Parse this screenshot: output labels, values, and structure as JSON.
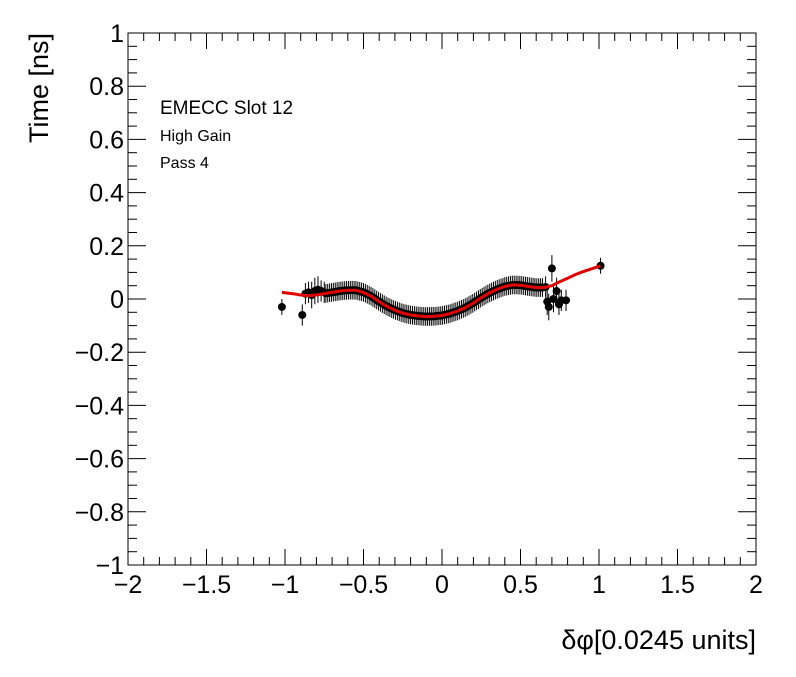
{
  "chart_data": {
    "type": "scatter",
    "xlabel": "δφ[0.0245 units]",
    "ylabel": "Time [ns]",
    "xlim": [
      -2,
      2
    ],
    "ylim": [
      -1,
      1
    ],
    "x_ticks": [
      -2,
      -1.5,
      -1,
      -0.5,
      0,
      0.5,
      1,
      1.5,
      2
    ],
    "x_tick_labels": [
      "−2",
      "−1.5",
      "−1",
      "−0.5",
      "0",
      "0.5",
      "1",
      "1.5",
      "2"
    ],
    "y_ticks": [
      -1,
      -0.8,
      -0.6,
      -0.4,
      -0.2,
      0,
      0.2,
      0.4,
      0.6,
      0.8,
      1
    ],
    "y_tick_labels": [
      "−1",
      "−0.8",
      "−0.6",
      "−0.4",
      "−0.2",
      "0",
      "0.2",
      "0.4",
      "0.6",
      "0.8",
      "1"
    ],
    "grid": false,
    "annotations": [
      "EMECC Slot 12",
      "High Gain",
      "Pass 4"
    ],
    "series": [
      {
        "kind": "points",
        "marker_color": "#000000",
        "points": [
          {
            "x": -1.02,
            "y": -0.03,
            "err": 0.03
          },
          {
            "x": -0.89,
            "y": -0.06,
            "err": 0.04
          },
          {
            "x": -0.87,
            "y": 0.02,
            "err": 0.04
          },
          {
            "x": -0.85,
            "y": 0.025,
            "err": 0.04
          },
          {
            "x": -0.83,
            "y": 0.015,
            "err": 0.05
          },
          {
            "x": -0.81,
            "y": 0.03,
            "err": 0.05
          },
          {
            "x": -0.79,
            "y": 0.035,
            "err": 0.05
          },
          {
            "x": -0.77,
            "y": 0.03,
            "err": 0.04
          },
          {
            "x": -0.75,
            "y": 0.025,
            "err": 0.04
          },
          {
            "x": 0.66,
            "y": 0.045,
            "err": 0.04
          },
          {
            "x": 0.67,
            "y": -0.01,
            "err": 0.05
          },
          {
            "x": 0.68,
            "y": -0.03,
            "err": 0.05
          },
          {
            "x": 0.7,
            "y": 0.115,
            "err": 0.05
          },
          {
            "x": 0.71,
            "y": 0.0,
            "err": 0.05
          },
          {
            "x": 0.73,
            "y": 0.03,
            "err": 0.05
          },
          {
            "x": 0.745,
            "y": -0.02,
            "err": 0.04
          },
          {
            "x": 0.76,
            "y": -0.005,
            "err": 0.04
          },
          {
            "x": 0.79,
            "y": -0.005,
            "err": 0.04
          },
          {
            "x": 1.01,
            "y": 0.125,
            "err": 0.03
          }
        ],
        "dense_band": {
          "x_from": -0.74,
          "x_to": 0.65,
          "x_step": 0.012,
          "err": 0.035
        }
      },
      {
        "kind": "fit-curve",
        "line_color": "#e00000",
        "x": [
          -1.02,
          -0.95,
          -0.9,
          -0.85,
          -0.8,
          -0.75,
          -0.7,
          -0.65,
          -0.6,
          -0.55,
          -0.5,
          -0.45,
          -0.4,
          -0.35,
          -0.3,
          -0.25,
          -0.2,
          -0.15,
          -0.1,
          -0.05,
          0.0,
          0.05,
          0.1,
          0.15,
          0.2,
          0.25,
          0.3,
          0.35,
          0.4,
          0.45,
          0.5,
          0.55,
          0.6,
          0.65,
          0.7,
          0.75,
          0.8,
          0.85,
          0.9,
          0.95,
          1.01
        ],
        "y": [
          0.025,
          0.02,
          0.015,
          0.012,
          0.015,
          0.02,
          0.025,
          0.03,
          0.033,
          0.033,
          0.025,
          0.01,
          -0.01,
          -0.028,
          -0.042,
          -0.053,
          -0.06,
          -0.064,
          -0.066,
          -0.065,
          -0.062,
          -0.055,
          -0.045,
          -0.032,
          -0.015,
          0.005,
          0.022,
          0.036,
          0.047,
          0.053,
          0.052,
          0.047,
          0.043,
          0.043,
          0.05,
          0.065,
          0.078,
          0.092,
          0.103,
          0.113,
          0.125
        ]
      }
    ]
  }
}
